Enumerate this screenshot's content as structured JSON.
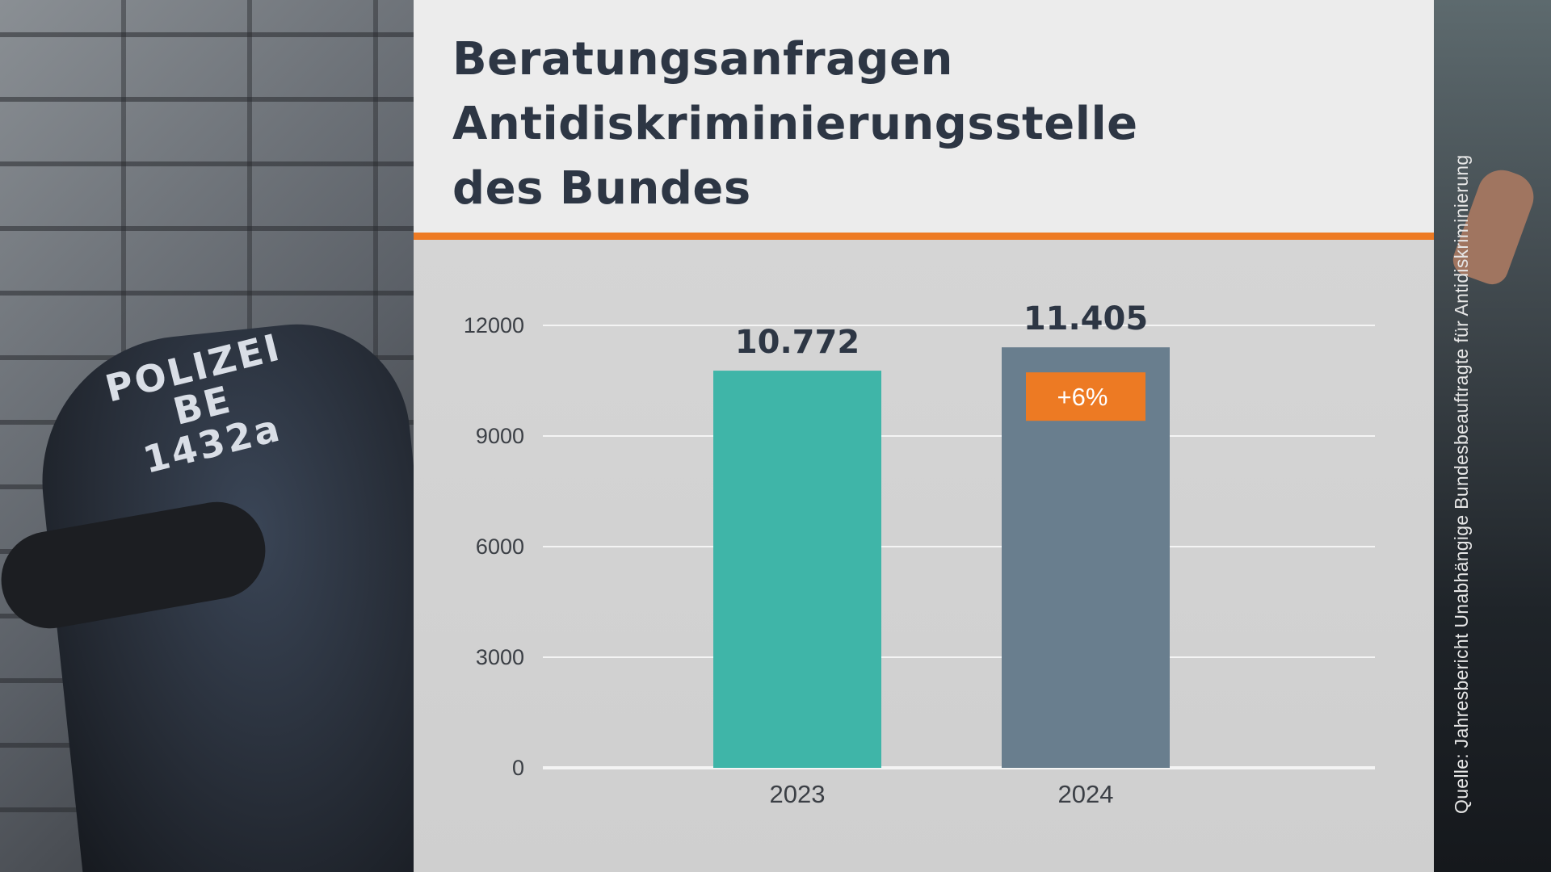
{
  "title_lines": [
    "Beratungsanfragen",
    "Antidiskriminierungsstelle",
    "des Bundes"
  ],
  "background": {
    "vest_text_line1": "POLIZEI",
    "vest_text_line2": "BE",
    "vest_text_line3": "1432a"
  },
  "source": "Quelle: Jahresbericht Unabhängige Bundesbeauftragte für Antidiskriminierung",
  "colors": {
    "accent": "#ed7a23",
    "bar_2023": "#3fb5a8",
    "bar_2024": "#697e8e",
    "title": "#2d3644",
    "gridline": "#f4f4f4"
  },
  "chart_data": {
    "type": "bar",
    "title": "Beratungsanfragen Antidiskriminierungsstelle des Bundes",
    "categories": [
      "2023",
      "2024"
    ],
    "values": [
      10772,
      11405
    ],
    "value_labels": [
      "10.772",
      "11.405"
    ],
    "ylim": [
      0,
      12000
    ],
    "yticks": [
      0,
      3000,
      6000,
      9000,
      12000
    ],
    "ytick_labels": [
      "0",
      "3000",
      "6000",
      "9000",
      "12000"
    ],
    "grid": true,
    "annotation": {
      "category": "2024",
      "text": "+6%"
    },
    "xlabel": "",
    "ylabel": ""
  }
}
